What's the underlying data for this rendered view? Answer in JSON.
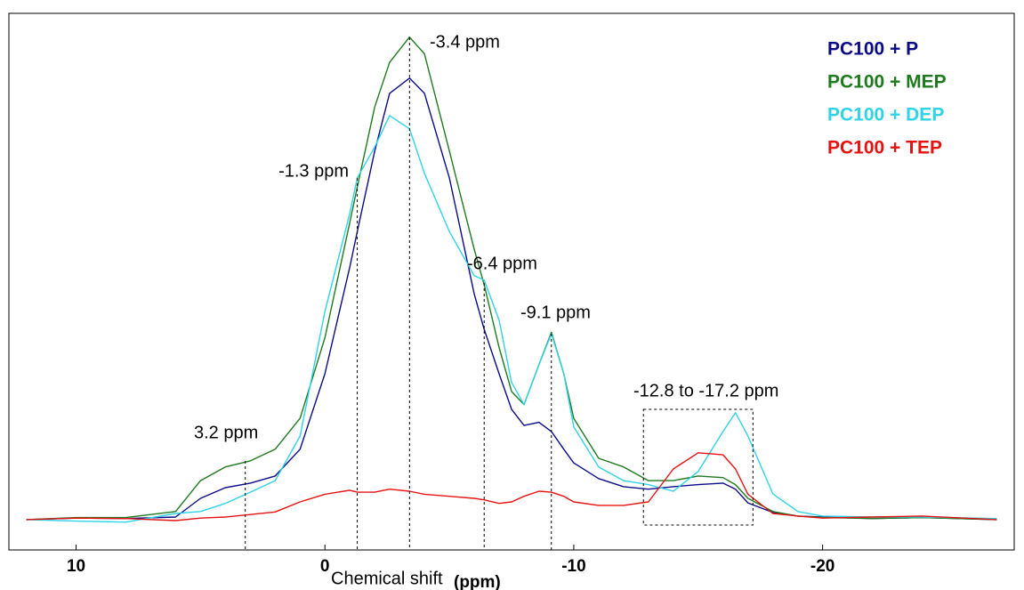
{
  "chart_data": {
    "type": "line",
    "x_label": "Chemical shift",
    "x_label_unit": "(ppm)",
    "x": [
      12,
      10,
      8,
      6,
      5,
      4,
      3,
      2,
      1,
      0,
      -1,
      -1.3,
      -2,
      -2.6,
      -3.4,
      -4,
      -5,
      -6,
      -6.4,
      -7,
      -7.5,
      -8,
      -8.6,
      -9.1,
      -9.6,
      -10,
      -11,
      -12,
      -13,
      -14,
      -15,
      -16,
      -16.5,
      -17,
      -18,
      -19,
      -20,
      -22,
      -24,
      -27
    ],
    "series": [
      {
        "name": "PC100 + P",
        "color": "#0b0b8a",
        "values": [
          0,
          0.3,
          0.2,
          0.5,
          4.2,
          6.3,
          7.2,
          8.6,
          13.9,
          28.8,
          49.9,
          56.9,
          72.8,
          84.2,
          87.2,
          84.2,
          67.5,
          44.6,
          37.6,
          28.8,
          21.8,
          18.6,
          19.2,
          17.4,
          13.9,
          11.2,
          8.1,
          6.5,
          6,
          6.5,
          6.9,
          7.2,
          6,
          3.3,
          1.4,
          0.7,
          0.5,
          0.2,
          0.4,
          0
        ]
      },
      {
        "name": "PC100 + MEP",
        "color": "#1f7a1f",
        "values": [
          0,
          0.4,
          0.4,
          1.6,
          7.7,
          10.4,
          11.6,
          13.9,
          20,
          35.9,
          58.7,
          65.7,
          81.5,
          90.3,
          95.3,
          92,
          72.8,
          53.4,
          46.4,
          34,
          25.3,
          22.7,
          30.6,
          37,
          28.8,
          20,
          12.1,
          10.4,
          7.7,
          7.7,
          8.6,
          8.3,
          6.9,
          4.2,
          1.6,
          0.7,
          0.4,
          0.2,
          0.4,
          0
        ]
      },
      {
        "name": "PC100 + DEP",
        "color": "#2fd3e6",
        "values": [
          0,
          -0.3,
          -0.5,
          1.2,
          1.6,
          3.2,
          5.4,
          7.7,
          16.5,
          41.1,
          60.5,
          67.5,
          73.6,
          79.8,
          77.2,
          68.4,
          56.9,
          48.2,
          47.3,
          39.4,
          27.1,
          22.7,
          30.6,
          36.7,
          28.8,
          18.3,
          10.4,
          7.7,
          6.9,
          5.6,
          9.5,
          17.4,
          21.1,
          16.5,
          5.1,
          1.6,
          0.7,
          0.5,
          0.5,
          0.2
        ]
      },
      {
        "name": "PC100 + TEP",
        "color": "#e61212",
        "values": [
          0,
          0.3,
          0.2,
          -0.2,
          0.3,
          0.5,
          1,
          1.5,
          3.5,
          5,
          5.8,
          5.4,
          5.4,
          6,
          5.6,
          5,
          4.6,
          4.2,
          3.9,
          3.2,
          3.5,
          4.6,
          5.6,
          5.4,
          4.6,
          3.5,
          2.8,
          2.8,
          3.5,
          10,
          13.2,
          12.8,
          10,
          5,
          1.2,
          0.7,
          0.3,
          0.5,
          0.7,
          0
        ]
      }
    ],
    "annotations": [
      {
        "text": "-3.4 ppm",
        "x": -3.4
      },
      {
        "text": "-1.3 ppm",
        "x": -1.3
      },
      {
        "text": "-6.4 ppm",
        "x": -6.4
      },
      {
        "text": "-9.1 ppm",
        "x": -9.1
      },
      {
        "text": "-12.8 to -17.2 ppm",
        "range": [
          -12.8,
          -17.2
        ]
      },
      {
        "text": "3.2 ppm",
        "x": 3.2
      }
    ],
    "xlim": [
      12.7,
      -27.7
    ],
    "ylim": [
      -6,
      100
    ],
    "xticks": [
      10,
      0,
      -10,
      -20
    ],
    "legend": "upper right"
  }
}
